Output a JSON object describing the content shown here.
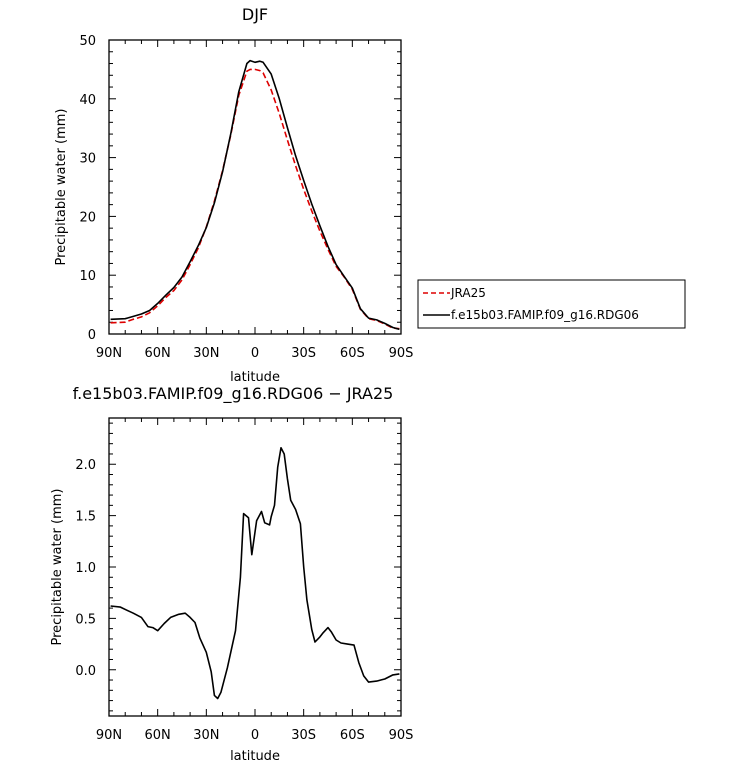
{
  "chart_data": [
    {
      "type": "line",
      "title": "DJF",
      "xlabel": "latitude",
      "ylabel": "Precipitable water (mm)",
      "xlim": [
        -90,
        90
      ],
      "ylim": [
        0,
        50
      ],
      "x_ticks": [
        -90,
        -60,
        -30,
        0,
        30,
        60,
        90
      ],
      "x_tick_labels": [
        "90N",
        "60N",
        "30N",
        "0",
        "30S",
        "60S",
        "90S"
      ],
      "y_ticks": [
        0,
        10,
        20,
        30,
        40,
        50
      ],
      "y_tick_labels": [
        "0",
        "10",
        "20",
        "30",
        "40",
        "50"
      ],
      "legend_position": "right",
      "series": [
        {
          "name": "JRA25",
          "color": "#dd0000",
          "dash": "dashed",
          "x": [
            -89,
            -80,
            -75,
            -70,
            -65,
            -60,
            -55,
            -50,
            -45,
            -40,
            -35,
            -30,
            -25,
            -20,
            -15,
            -10,
            -5,
            -3,
            0,
            3,
            5,
            10,
            15,
            20,
            25,
            30,
            35,
            40,
            45,
            50,
            55,
            60,
            65,
            70,
            75,
            80,
            85,
            89
          ],
          "y": [
            1.9,
            2.0,
            2.5,
            2.9,
            3.6,
            4.8,
            6.2,
            7.4,
            9.2,
            11.8,
            14.6,
            18.2,
            22.6,
            27.8,
            33.8,
            40.6,
            44.7,
            45.0,
            45.0,
            44.8,
            44.4,
            41.5,
            37.5,
            33.0,
            28.6,
            24.6,
            20.9,
            17.5,
            14.4,
            11.5,
            9.7,
            7.6,
            4.2,
            2.6,
            2.3,
            1.7,
            1.0,
            0.9
          ]
        },
        {
          "name": "f.e15b03.FAMIP.f09_g16.RDG06",
          "color": "#000000",
          "dash": "solid",
          "x": [
            -89,
            -80,
            -75,
            -70,
            -65,
            -60,
            -55,
            -50,
            -45,
            -40,
            -35,
            -30,
            -25,
            -20,
            -15,
            -10,
            -5,
            -3,
            0,
            3,
            5,
            10,
            15,
            20,
            25,
            30,
            35,
            40,
            45,
            50,
            55,
            60,
            65,
            70,
            75,
            80,
            85,
            89
          ],
          "y": [
            2.5,
            2.6,
            3.0,
            3.4,
            4.0,
            5.2,
            6.6,
            7.9,
            9.7,
            12.3,
            15.0,
            18.1,
            22.3,
            27.6,
            34.0,
            41.2,
            46.0,
            46.5,
            46.2,
            46.4,
            46.2,
            44.2,
            40.0,
            35.1,
            30.3,
            26.1,
            22.1,
            18.4,
            14.9,
            11.8,
            9.8,
            7.8,
            4.3,
            2.7,
            2.4,
            1.8,
            1.1,
            0.8
          ]
        }
      ]
    },
    {
      "type": "line",
      "title": "f.e15b03.FAMIP.f09_g16.RDG06 − JRA25",
      "xlabel": "latitude",
      "ylabel": "Precipitable water (mm)",
      "xlim": [
        -90,
        90
      ],
      "ylim": [
        -0.45,
        2.45
      ],
      "x_ticks": [
        -90,
        -60,
        -30,
        0,
        30,
        60,
        90
      ],
      "x_tick_labels": [
        "90N",
        "60N",
        "30N",
        "0",
        "30S",
        "60S",
        "90S"
      ],
      "y_ticks": [
        0.0,
        0.5,
        1.0,
        1.5,
        2.0
      ],
      "y_tick_labels": [
        "0.0",
        "0.5",
        "1.0",
        "1.5",
        "2.0"
      ],
      "series": [
        {
          "name": "",
          "color": "#000000",
          "dash": "solid",
          "x": [
            -89,
            -83,
            -79,
            -75,
            -70,
            -66,
            -63,
            -60,
            -56,
            -52,
            -47,
            -43,
            -40,
            -37,
            -34,
            -30,
            -27,
            -25,
            -23,
            -21,
            -17,
            -12,
            -9,
            -7,
            -4,
            -2,
            1,
            4,
            6,
            9,
            10,
            12,
            14,
            16,
            18,
            20,
            22,
            25,
            28,
            30,
            32,
            35,
            37,
            40,
            42,
            45,
            47,
            50,
            53,
            57,
            61,
            64,
            67,
            70,
            75,
            80,
            85,
            89
          ],
          "y": [
            0.62,
            0.61,
            0.58,
            0.55,
            0.51,
            0.42,
            0.41,
            0.38,
            0.45,
            0.51,
            0.54,
            0.55,
            0.51,
            0.46,
            0.31,
            0.17,
            -0.02,
            -0.25,
            -0.28,
            -0.22,
            0.02,
            0.38,
            0.9,
            1.52,
            1.48,
            1.12,
            1.45,
            1.54,
            1.43,
            1.41,
            1.49,
            1.6,
            1.97,
            2.16,
            2.1,
            1.86,
            1.65,
            1.56,
            1.42,
            1.0,
            0.68,
            0.39,
            0.27,
            0.32,
            0.36,
            0.41,
            0.37,
            0.29,
            0.26,
            0.25,
            0.24,
            0.07,
            -0.06,
            -0.12,
            -0.11,
            -0.09,
            -0.05,
            -0.04
          ]
        }
      ]
    }
  ]
}
